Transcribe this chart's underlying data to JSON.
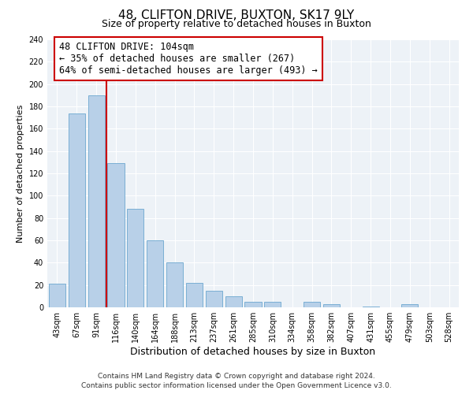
{
  "title": "48, CLIFTON DRIVE, BUXTON, SK17 9LY",
  "subtitle": "Size of property relative to detached houses in Buxton",
  "xlabel": "Distribution of detached houses by size in Buxton",
  "ylabel": "Number of detached properties",
  "bar_labels": [
    "43sqm",
    "67sqm",
    "91sqm",
    "116sqm",
    "140sqm",
    "164sqm",
    "188sqm",
    "213sqm",
    "237sqm",
    "261sqm",
    "285sqm",
    "310sqm",
    "334sqm",
    "358sqm",
    "382sqm",
    "407sqm",
    "431sqm",
    "455sqm",
    "479sqm",
    "503sqm",
    "528sqm"
  ],
  "bar_values": [
    21,
    174,
    190,
    129,
    88,
    60,
    40,
    22,
    15,
    10,
    5,
    5,
    0,
    5,
    3,
    0,
    1,
    0,
    3,
    0,
    0
  ],
  "bar_color": "#b8d0e8",
  "bar_edge_color": "#7aafd4",
  "ylim": [
    0,
    240
  ],
  "yticks": [
    0,
    20,
    40,
    60,
    80,
    100,
    120,
    140,
    160,
    180,
    200,
    220,
    240
  ],
  "vline_x_idx": 2,
  "vline_color": "#cc0000",
  "annotation_title": "48 CLIFTON DRIVE: 104sqm",
  "annotation_line1": "← 35% of detached houses are smaller (267)",
  "annotation_line2": "64% of semi-detached houses are larger (493) →",
  "annotation_box_color": "#cc0000",
  "footer1": "Contains HM Land Registry data © Crown copyright and database right 2024.",
  "footer2": "Contains public sector information licensed under the Open Government Licence v3.0.",
  "bg_color": "#edf2f7",
  "grid_color": "#ffffff",
  "title_fontsize": 11,
  "subtitle_fontsize": 9,
  "xlabel_fontsize": 9,
  "ylabel_fontsize": 8,
  "tick_fontsize": 7,
  "annotation_fontsize": 8.5,
  "footer_fontsize": 6.5
}
